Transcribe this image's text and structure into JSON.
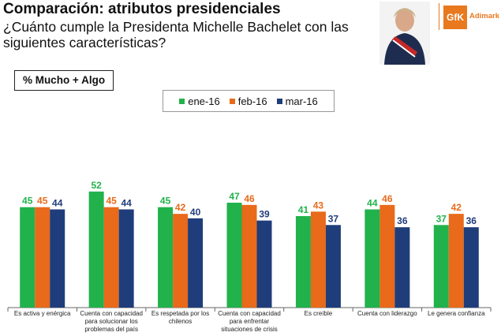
{
  "header": {
    "title": "Comparación: atributos presidenciales",
    "subtitle": "¿Cuánto cumple la Presidenta Michelle Bachelet con las siguientes características?"
  },
  "logo": {
    "mark": "GfK",
    "name": "Adimark",
    "color": "#e8791e"
  },
  "metric_label": "% Mucho + Algo",
  "chart_data": {
    "type": "bar",
    "title": "Comparación: atributos presidenciales",
    "categories": [
      "Es activa y enérgica",
      "Cuenta con capacidad para solucionar los problemas del país",
      "Es respetada por los chilenos",
      "Cuenta con capacidad para enfrentar situaciones de crisis",
      "Es creíble",
      "Cuenta con liderazgo",
      "Le genera confianza"
    ],
    "series": [
      {
        "name": "ene-16",
        "color": "#21b24b",
        "values": [
          45,
          52,
          45,
          47,
          41,
          44,
          37
        ]
      },
      {
        "name": "feb-16",
        "color": "#e86a1a",
        "values": [
          45,
          45,
          42,
          46,
          43,
          46,
          42
        ]
      },
      {
        "name": "mar-16",
        "color": "#1f3d7a",
        "values": [
          44,
          44,
          40,
          39,
          37,
          36,
          36
        ]
      }
    ],
    "ylim": [
      0,
      60
    ],
    "legend": "top-center",
    "grid": false
  }
}
